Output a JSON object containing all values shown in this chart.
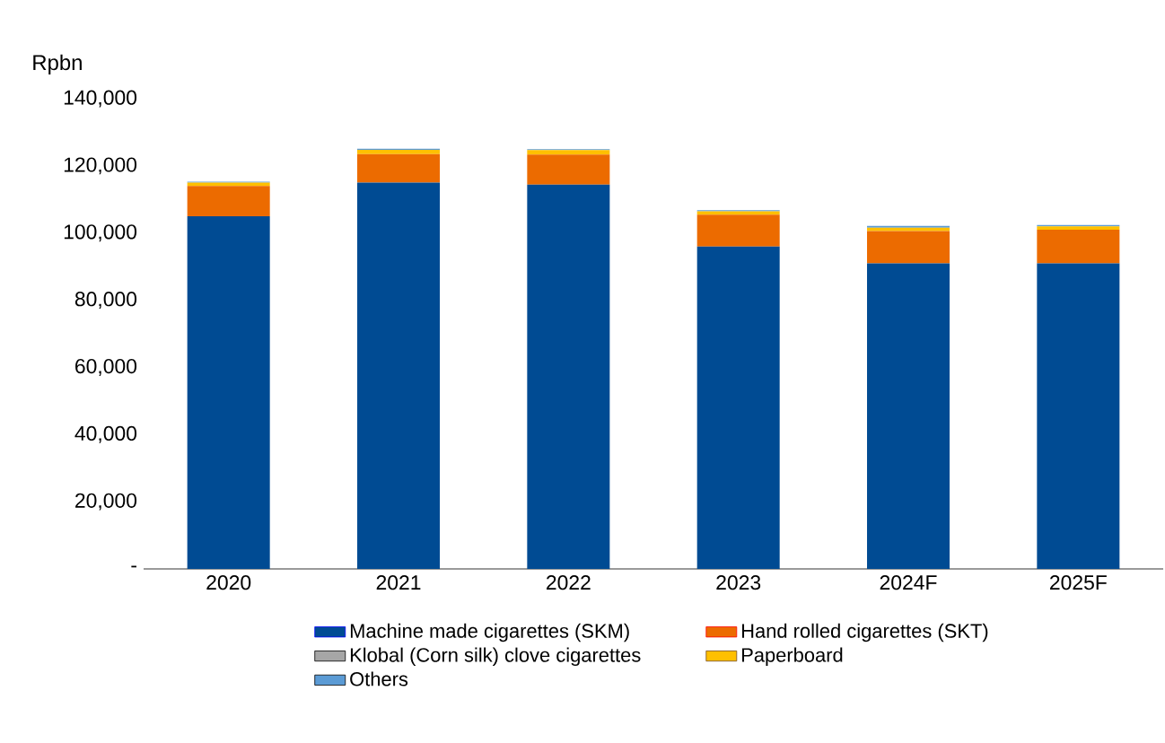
{
  "chart_data": {
    "type": "bar",
    "stacked": true,
    "ylabel": "Rpbn",
    "categories": [
      "2020",
      "2021",
      "2022",
      "2023",
      "2024F",
      "2025F"
    ],
    "series": [
      {
        "name": "Machine made cigarettes (SKM)",
        "color": "#004b93",
        "values": [
          105000,
          115000,
          114400,
          96000,
          91000,
          91000
        ]
      },
      {
        "name": "Hand rolled cigarettes (SKT)",
        "color": "#ec6b00",
        "values": [
          9000,
          8500,
          9000,
          9500,
          9600,
          10000
        ]
      },
      {
        "name": "Klobal (Corn silk) clove cigarettes",
        "color": "#a6a6a6",
        "values": [
          null,
          null,
          null,
          null,
          null,
          null
        ]
      },
      {
        "name": "Paperboard",
        "color": "#ffc000",
        "values": [
          1000,
          1300,
          1300,
          1000,
          1000,
          1000
        ]
      },
      {
        "name": "Others",
        "color": "#5b9bd5",
        "values": [
          300,
          300,
          300,
          300,
          500,
          400
        ]
      }
    ],
    "ylim": [
      0,
      140000
    ],
    "yticks": [
      {
        "value": 0,
        "label": "-"
      },
      {
        "value": 20000,
        "label": "20,000"
      },
      {
        "value": 40000,
        "label": "40,000"
      },
      {
        "value": 60000,
        "label": "60,000"
      },
      {
        "value": 80000,
        "label": "80,000"
      },
      {
        "value": 100000,
        "label": "100,000"
      },
      {
        "value": 120000,
        "label": "120,000"
      },
      {
        "value": 140000,
        "label": "140,000"
      }
    ],
    "legend": "bottom",
    "grid": false
  }
}
